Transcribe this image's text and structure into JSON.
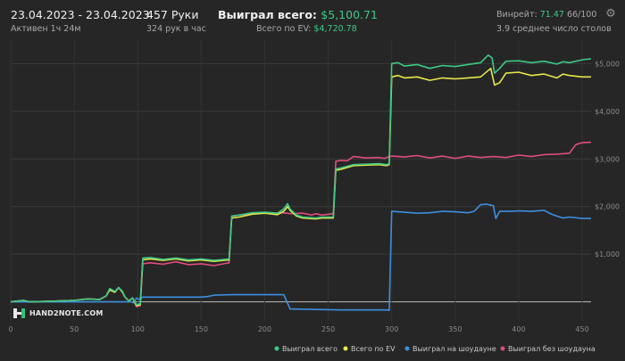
{
  "header": {
    "date_range": "23.04.2023 - 23.04.2023",
    "active": "Активен 1ч 24м",
    "hands": "457 Руки",
    "hands_per_hour": "324 рук в час",
    "won_label": "Выиграл всего:",
    "won_value": "$5,100.71",
    "ev_label": "Всего по EV:",
    "ev_value": "$4,720.78",
    "winrate_label": "Винрейт:",
    "winrate_value": "71.47",
    "winrate_ratio": "66/100",
    "avg_tables": "3.9 среднее число столов"
  },
  "icons": {
    "settings": "gear-icon",
    "logo": "hand2note-logo"
  },
  "logo_text": "HAND2NOTE.COM",
  "chart_data": {
    "type": "line",
    "xlim": [
      0,
      457
    ],
    "ylim": [
      -400,
      5400
    ],
    "x_ticks": [
      0,
      50,
      100,
      150,
      200,
      250,
      300,
      350,
      400,
      450
    ],
    "y_ticks": [
      {
        "value": 1000,
        "label": "$1,000"
      },
      {
        "value": 2000,
        "label": "$2,000"
      },
      {
        "value": 3000,
        "label": "$3,000"
      },
      {
        "value": 4000,
        "label": "$4,000"
      },
      {
        "value": 5000,
        "label": "$5,000"
      }
    ],
    "zero_line": true,
    "grid": true,
    "legend_position": "bottom-right",
    "series": [
      {
        "name": "Выиграл без шоудауна",
        "color": "#e04d7d",
        "points": [
          [
            0,
            0
          ],
          [
            10,
            30
          ],
          [
            15,
            0
          ],
          [
            30,
            10
          ],
          [
            40,
            20
          ],
          [
            50,
            30
          ],
          [
            60,
            60
          ],
          [
            70,
            50
          ],
          [
            75,
            120
          ],
          [
            78,
            250
          ],
          [
            82,
            200
          ],
          [
            85,
            300
          ],
          [
            88,
            200
          ],
          [
            90,
            100
          ],
          [
            93,
            20
          ],
          [
            96,
            80
          ],
          [
            99,
            -100
          ],
          [
            102,
            -80
          ],
          [
            104,
            800
          ],
          [
            110,
            820
          ],
          [
            120,
            790
          ],
          [
            130,
            840
          ],
          [
            140,
            780
          ],
          [
            150,
            800
          ],
          [
            160,
            760
          ],
          [
            172,
            820
          ],
          [
            174,
            1800
          ],
          [
            180,
            1820
          ],
          [
            190,
            1850
          ],
          [
            200,
            1880
          ],
          [
            210,
            1860
          ],
          [
            215,
            1870
          ],
          [
            220,
            1850
          ],
          [
            230,
            1860
          ],
          [
            237,
            1820
          ],
          [
            240,
            1850
          ],
          [
            245,
            1820
          ],
          [
            254,
            1850
          ],
          [
            256,
            2950
          ],
          [
            260,
            2970
          ],
          [
            265,
            2960
          ],
          [
            270,
            3050
          ],
          [
            280,
            3020
          ],
          [
            290,
            3030
          ],
          [
            294,
            3010
          ],
          [
            296,
            3030
          ],
          [
            300,
            3060
          ],
          [
            310,
            3040
          ],
          [
            320,
            3070
          ],
          [
            330,
            3020
          ],
          [
            340,
            3060
          ],
          [
            350,
            3010
          ],
          [
            360,
            3060
          ],
          [
            370,
            3030
          ],
          [
            380,
            3050
          ],
          [
            390,
            3030
          ],
          [
            400,
            3080
          ],
          [
            410,
            3050
          ],
          [
            420,
            3090
          ],
          [
            430,
            3100
          ],
          [
            440,
            3120
          ],
          [
            445,
            3300
          ],
          [
            450,
            3340
          ],
          [
            457,
            3350
          ]
        ]
      },
      {
        "name": "Выиграл на шоудауне",
        "color": "#3d8fe0",
        "points": [
          [
            0,
            0
          ],
          [
            20,
            0
          ],
          [
            40,
            0
          ],
          [
            60,
            0
          ],
          [
            80,
            0
          ],
          [
            95,
            0
          ],
          [
            97,
            -20
          ],
          [
            99,
            80
          ],
          [
            101,
            50
          ],
          [
            104,
            100
          ],
          [
            120,
            100
          ],
          [
            150,
            100
          ],
          [
            155,
            110
          ],
          [
            160,
            140
          ],
          [
            175,
            150
          ],
          [
            200,
            150
          ],
          [
            215,
            150
          ],
          [
            220,
            -150
          ],
          [
            240,
            -160
          ],
          [
            260,
            -170
          ],
          [
            280,
            -170
          ],
          [
            296,
            -170
          ],
          [
            298,
            -180
          ],
          [
            300,
            1900
          ],
          [
            310,
            1880
          ],
          [
            320,
            1860
          ],
          [
            330,
            1870
          ],
          [
            340,
            1900
          ],
          [
            350,
            1890
          ],
          [
            360,
            1870
          ],
          [
            365,
            1900
          ],
          [
            370,
            2040
          ],
          [
            375,
            2050
          ],
          [
            380,
            2020
          ],
          [
            382,
            1750
          ],
          [
            385,
            1900
          ],
          [
            395,
            1900
          ],
          [
            400,
            1910
          ],
          [
            410,
            1900
          ],
          [
            420,
            1920
          ],
          [
            425,
            1850
          ],
          [
            430,
            1800
          ],
          [
            435,
            1760
          ],
          [
            440,
            1780
          ],
          [
            450,
            1750
          ],
          [
            457,
            1750
          ]
        ]
      },
      {
        "name": "Всего по EV",
        "color": "#e6e84a",
        "points": [
          [
            0,
            0
          ],
          [
            10,
            30
          ],
          [
            15,
            0
          ],
          [
            30,
            10
          ],
          [
            40,
            20
          ],
          [
            50,
            30
          ],
          [
            60,
            60
          ],
          [
            70,
            50
          ],
          [
            75,
            120
          ],
          [
            78,
            250
          ],
          [
            82,
            200
          ],
          [
            85,
            300
          ],
          [
            88,
            200
          ],
          [
            90,
            100
          ],
          [
            93,
            20
          ],
          [
            96,
            80
          ],
          [
            99,
            -80
          ],
          [
            102,
            -60
          ],
          [
            104,
            880
          ],
          [
            110,
            900
          ],
          [
            120,
            870
          ],
          [
            130,
            900
          ],
          [
            140,
            860
          ],
          [
            150,
            880
          ],
          [
            160,
            850
          ],
          [
            172,
            880
          ],
          [
            174,
            1760
          ],
          [
            180,
            1780
          ],
          [
            190,
            1840
          ],
          [
            200,
            1860
          ],
          [
            210,
            1830
          ],
          [
            215,
            1900
          ],
          [
            218,
            2000
          ],
          [
            220,
            1920
          ],
          [
            225,
            1800
          ],
          [
            230,
            1760
          ],
          [
            240,
            1740
          ],
          [
            245,
            1760
          ],
          [
            254,
            1760
          ],
          [
            256,
            2760
          ],
          [
            260,
            2780
          ],
          [
            270,
            2860
          ],
          [
            280,
            2870
          ],
          [
            290,
            2880
          ],
          [
            296,
            2860
          ],
          [
            298,
            2880
          ],
          [
            300,
            4720
          ],
          [
            305,
            4750
          ],
          [
            310,
            4700
          ],
          [
            320,
            4720
          ],
          [
            330,
            4650
          ],
          [
            340,
            4700
          ],
          [
            350,
            4680
          ],
          [
            360,
            4700
          ],
          [
            370,
            4720
          ],
          [
            378,
            4900
          ],
          [
            381,
            4550
          ],
          [
            385,
            4600
          ],
          [
            390,
            4800
          ],
          [
            400,
            4820
          ],
          [
            410,
            4750
          ],
          [
            420,
            4780
          ],
          [
            430,
            4700
          ],
          [
            435,
            4780
          ],
          [
            440,
            4750
          ],
          [
            450,
            4720
          ],
          [
            457,
            4720
          ]
        ]
      },
      {
        "name": "Выиграл всего",
        "color": "#3ec987",
        "points": [
          [
            0,
            0
          ],
          [
            10,
            30
          ],
          [
            15,
            0
          ],
          [
            30,
            10
          ],
          [
            40,
            20
          ],
          [
            50,
            30
          ],
          [
            60,
            60
          ],
          [
            70,
            50
          ],
          [
            75,
            120
          ],
          [
            78,
            280
          ],
          [
            82,
            220
          ],
          [
            85,
            300
          ],
          [
            88,
            220
          ],
          [
            90,
            100
          ],
          [
            93,
            20
          ],
          [
            96,
            80
          ],
          [
            99,
            -60
          ],
          [
            102,
            -40
          ],
          [
            104,
            920
          ],
          [
            110,
            930
          ],
          [
            120,
            890
          ],
          [
            130,
            920
          ],
          [
            140,
            880
          ],
          [
            150,
            900
          ],
          [
            160,
            870
          ],
          [
            172,
            900
          ],
          [
            174,
            1800
          ],
          [
            180,
            1820
          ],
          [
            190,
            1870
          ],
          [
            200,
            1880
          ],
          [
            210,
            1860
          ],
          [
            215,
            1950
          ],
          [
            218,
            2060
          ],
          [
            220,
            1950
          ],
          [
            225,
            1820
          ],
          [
            230,
            1780
          ],
          [
            240,
            1760
          ],
          [
            245,
            1780
          ],
          [
            254,
            1780
          ],
          [
            256,
            2790
          ],
          [
            260,
            2810
          ],
          [
            270,
            2880
          ],
          [
            280,
            2890
          ],
          [
            290,
            2900
          ],
          [
            296,
            2880
          ],
          [
            298,
            2900
          ],
          [
            300,
            5000
          ],
          [
            305,
            5020
          ],
          [
            310,
            4950
          ],
          [
            320,
            4980
          ],
          [
            330,
            4900
          ],
          [
            340,
            4960
          ],
          [
            350,
            4940
          ],
          [
            360,
            4980
          ],
          [
            370,
            5020
          ],
          [
            376,
            5180
          ],
          [
            379,
            5120
          ],
          [
            381,
            4800
          ],
          [
            385,
            4900
          ],
          [
            390,
            5050
          ],
          [
            400,
            5060
          ],
          [
            410,
            5020
          ],
          [
            420,
            5050
          ],
          [
            430,
            4990
          ],
          [
            435,
            5040
          ],
          [
            440,
            5020
          ],
          [
            450,
            5080
          ],
          [
            457,
            5100
          ]
        ]
      }
    ]
  }
}
